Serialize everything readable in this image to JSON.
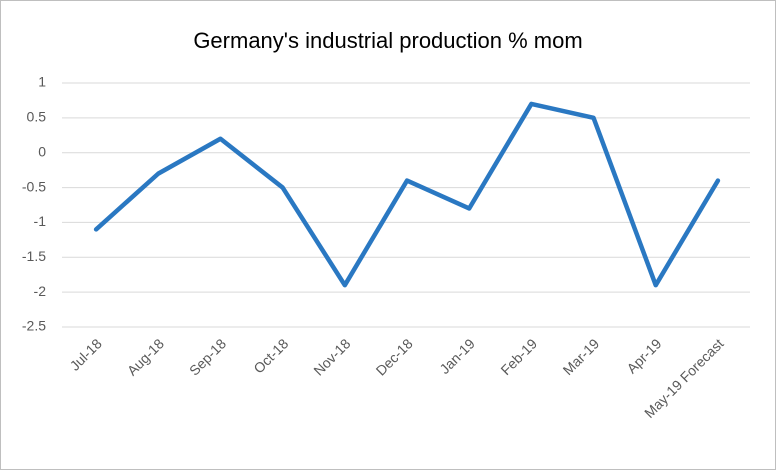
{
  "chart_data": {
    "type": "line",
    "title": "Germany's  industrial production % mom",
    "categories": [
      "Jul-18",
      "Aug-18",
      "Sep-18",
      "Oct-18",
      "Nov-18",
      "Dec-18",
      "Jan-19",
      "Feb-19",
      "Mar-19",
      "Apr-19",
      "May-19 Forecast"
    ],
    "values": [
      -1.1,
      -0.3,
      0.2,
      -0.5,
      -1.9,
      -0.4,
      -0.8,
      0.7,
      0.5,
      -1.9,
      -0.4
    ],
    "color": "#2a78c2",
    "ylim": [
      -2.5,
      1
    ],
    "yticks": [
      -2.5,
      -2,
      -1.5,
      -1,
      -0.5,
      0,
      0.5,
      1
    ],
    "grid": true
  }
}
